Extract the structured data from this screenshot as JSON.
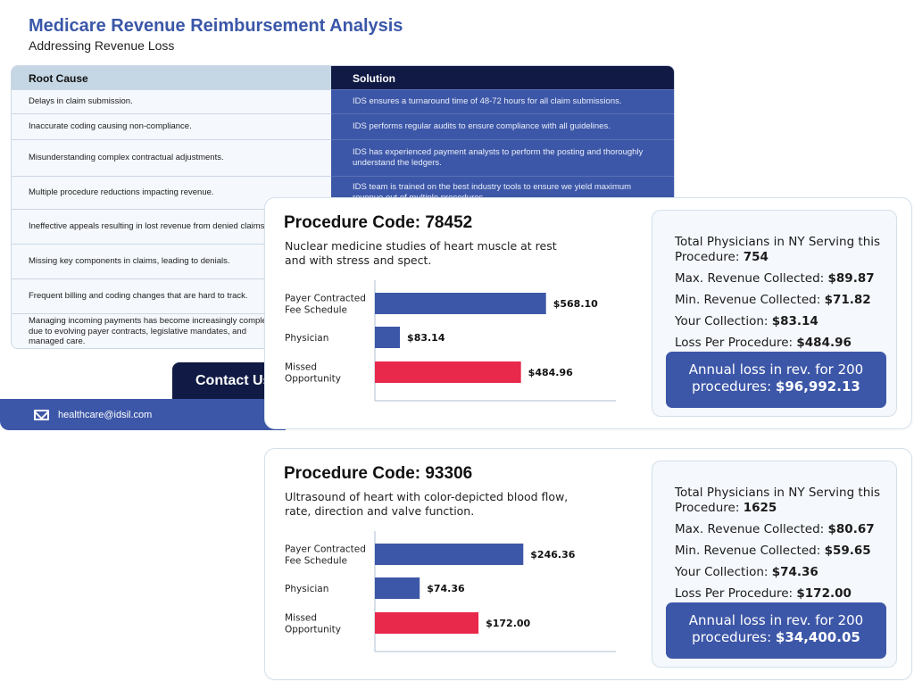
{
  "header": {
    "title": "Medicare Revenue Reimbursement Analysis",
    "subtitle": "Addressing Revenue Loss"
  },
  "table": {
    "col_cause": "Root Cause",
    "col_solution": "Solution",
    "rows": [
      {
        "cause": "Delays in claim submission.",
        "solution": "IDS ensures a turnaround time of 48-72 hours for all claim submissions."
      },
      {
        "cause": "Inaccurate coding causing non-compliance.",
        "solution": "IDS performs regular audits to ensure compliance with all guidelines."
      },
      {
        "cause": "Misunderstanding complex contractual adjustments.",
        "solution": "IDS has experienced payment analysts to perform the posting and thoroughly understand the ledgers."
      },
      {
        "cause": "Multiple procedure reductions impacting revenue.",
        "solution": "IDS team is trained on the best industry tools to ensure we yield maximum revenue out of multiple procedures."
      },
      {
        "cause": "Ineffective appeals resulting in lost revenue from denied claims.",
        "solution": ""
      },
      {
        "cause": "Missing key components in claims, leading to denials.",
        "solution": ""
      },
      {
        "cause": "Frequent billing and coding changes that are hard to track.",
        "solution": ""
      },
      {
        "cause": "Managing incoming payments has become increasingly complex due to evolving payer contracts, legislative mandates, and managed care.",
        "solution": ""
      }
    ]
  },
  "contact": {
    "button_label": "Contact Us",
    "email": "healthcare@idsil.com"
  },
  "procedures": [
    {
      "code_label": "Procedure Code: 78452",
      "description": "Nuclear medicine studies of heart muscle at rest and with stress and spect.",
      "physicians_label": "Total Physicians in NY Serving this Procedure:",
      "physicians_value": "754",
      "max_label": "Max. Revenue Collected:",
      "max_value": "$89.87",
      "min_label": "Min. Revenue Collected:",
      "min_value": "$71.82",
      "your_label": "Your Collection:",
      "your_value": "$83.14",
      "loss_label": "Loss Per Procedure:",
      "loss_value": "$484.96",
      "annual_label": "Annual loss in rev. for 200 procedures:",
      "annual_value": "$96,992.13",
      "chart_data": {
        "type": "bar",
        "orientation": "horizontal",
        "categories": [
          "Payer Contracted Fee Schedule",
          "Physician",
          "Missed Opportunity"
        ],
        "category_lines": [
          [
            "Payer Contracted",
            "Fee Schedule"
          ],
          [
            "Physician"
          ],
          [
            "Missed",
            "Opportunity"
          ]
        ],
        "values": [
          568.1,
          83.14,
          484.96
        ],
        "value_labels": [
          "$568.10",
          "$83.14",
          "$484.96"
        ],
        "colors": [
          "#3d57a8",
          "#3d57a8",
          "#e8294b"
        ],
        "xlim": [
          0,
          800
        ]
      }
    },
    {
      "code_label": "Procedure Code: 93306",
      "description": "Ultrasound of heart with color-depicted blood flow, rate, direction and valve function.",
      "physicians_label": "Total Physicians in NY Serving this Procedure:",
      "physicians_value": "1625",
      "max_label": "Max. Revenue Collected:",
      "max_value": "$80.67",
      "min_label": "Min. Revenue Collected:",
      "min_value": "$59.65",
      "your_label": "Your Collection:",
      "your_value": "$74.36",
      "loss_label": "Loss Per Procedure:",
      "loss_value": "$172.00",
      "annual_label": "Annual loss in rev. for 200 procedures:",
      "annual_value": "$34,400.05",
      "chart_data": {
        "type": "bar",
        "orientation": "horizontal",
        "categories": [
          "Payer Contracted Fee Schedule",
          "Physician",
          "Missed Opportunity"
        ],
        "category_lines": [
          [
            "Payer Contracted",
            "Fee Schedule"
          ],
          [
            "Physician"
          ],
          [
            "Missed",
            "Opportunity"
          ]
        ],
        "values": [
          246.36,
          74.36,
          172.0
        ],
        "value_labels": [
          "$246.36",
          "$74.36",
          "$172.00"
        ],
        "colors": [
          "#3d57a8",
          "#3d57a8",
          "#e8294b"
        ],
        "xlim": [
          0,
          400
        ]
      }
    }
  ]
}
